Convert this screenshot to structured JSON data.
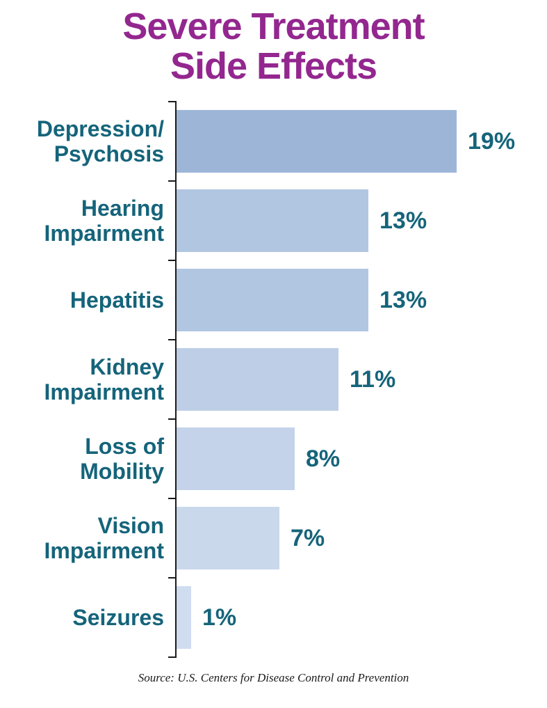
{
  "title": "Severe Treatment\nSide Effects",
  "source": "Source: U.S. Centers for Disease Control and Prevention",
  "colors": {
    "title": "#93278f",
    "category_label": "#15647a",
    "value_label": "#15647a",
    "axis": "#1a1a1a"
  },
  "chart_data": {
    "type": "bar",
    "orientation": "horizontal",
    "title": "Severe Treatment Side Effects",
    "categories": [
      "Depression/\nPsychosis",
      "Hearing\nImpairment",
      "Hepatitis",
      "Kidney\nImpairment",
      "Loss of\nMobility",
      "Vision\nImpairment",
      "Seizures"
    ],
    "values": [
      19,
      13,
      13,
      11,
      8,
      7,
      1
    ],
    "value_labels": [
      "19%",
      "13%",
      "13%",
      "11%",
      "8%",
      "7%",
      "1%"
    ],
    "bar_colors": [
      "#9db6d8",
      "#b1c6e1",
      "#b1c6e1",
      "#bdcee6",
      "#c4d3e9",
      "#cad8ec",
      "#d0dcef"
    ],
    "xlabel": "",
    "ylabel": "",
    "xlim": [
      0,
      20
    ],
    "grid": false,
    "legend": false,
    "source": "Source: U.S. Centers for Disease Control and Prevention"
  }
}
